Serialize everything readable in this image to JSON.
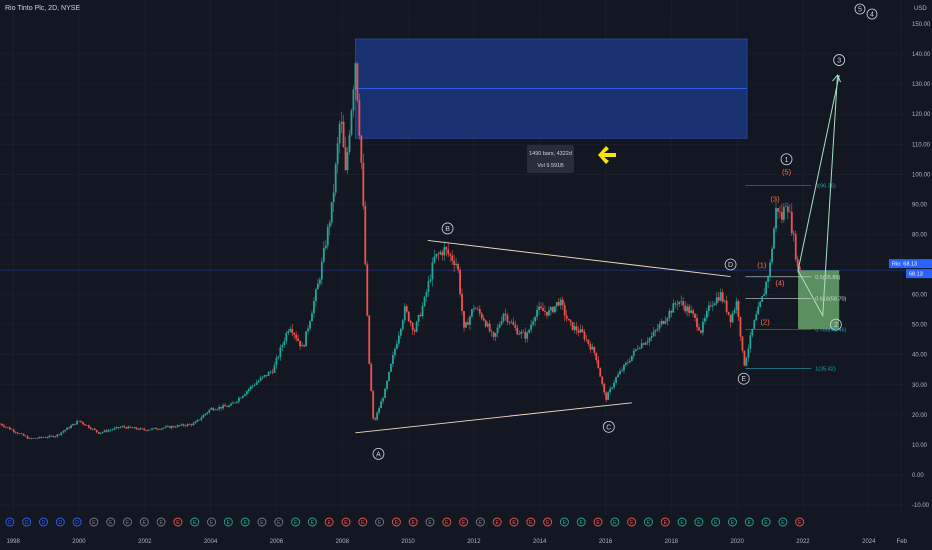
{
  "header": {
    "symbol_title": "Rio Tinto Plc, 2D, NYSE",
    "currency": "USD"
  },
  "top_wave_labels": [
    "5",
    "4"
  ],
  "chart_data": {
    "type": "candlestick",
    "title": "Rio Tinto Plc, 2D, NYSE",
    "ylim": [
      -10,
      150
    ],
    "y_ticks": [
      -10,
      0,
      10,
      20,
      30,
      40,
      50,
      60,
      70,
      80,
      90,
      100,
      110,
      120,
      130,
      140,
      150
    ],
    "y_tick_labels": [
      "-10.00",
      "0.00",
      "10.00",
      "20.00",
      "30.00",
      "40.00",
      "50.00",
      "60.00",
      "70.00",
      "80.00",
      "90.00",
      "100.00",
      "110.00",
      "120.00",
      "130.00",
      "140.00",
      "150.00"
    ],
    "xlim": [
      "1997-07",
      "2025-03"
    ],
    "x_tick_labels": [
      "1998",
      "2000",
      "2002",
      "2004",
      "2006",
      "2008",
      "2010",
      "2012",
      "2014",
      "2016",
      "2018",
      "2020",
      "2022",
      "2024",
      "Feb"
    ],
    "x_tick_dates": [
      1998,
      2000,
      2002,
      2004,
      2006,
      2008,
      2010,
      2012,
      2014,
      2016,
      2018,
      2020,
      2022,
      2024,
      2025
    ],
    "last_price": 68.13,
    "price_label_name": "Rio:",
    "price_labels": [
      "68.13",
      "68.13"
    ],
    "price_path": [
      [
        1997.6,
        17
      ],
      [
        1998.5,
        12
      ],
      [
        1999.3,
        13
      ],
      [
        2000.0,
        18
      ],
      [
        2000.6,
        14
      ],
      [
        2001.3,
        16
      ],
      [
        2002.0,
        15
      ],
      [
        2002.8,
        16
      ],
      [
        2003.5,
        17
      ],
      [
        2004.0,
        22
      ],
      [
        2004.6,
        23
      ],
      [
        2005.3,
        30
      ],
      [
        2005.9,
        35
      ],
      [
        2006.4,
        50
      ],
      [
        2006.8,
        42
      ],
      [
        2007.3,
        65
      ],
      [
        2007.7,
        90
      ],
      [
        2007.95,
        120
      ],
      [
        2008.1,
        100
      ],
      [
        2008.4,
        138
      ],
      [
        2008.6,
        100
      ],
      [
        2008.8,
        40
      ],
      [
        2008.95,
        17
      ],
      [
        2009.3,
        28
      ],
      [
        2009.6,
        42
      ],
      [
        2009.9,
        55
      ],
      [
        2010.2,
        48
      ],
      [
        2010.5,
        58
      ],
      [
        2010.8,
        72
      ],
      [
        2011.1,
        75
      ],
      [
        2011.5,
        70
      ],
      [
        2011.7,
        48
      ],
      [
        2012.0,
        56
      ],
      [
        2012.3,
        52
      ],
      [
        2012.6,
        45
      ],
      [
        2012.9,
        54
      ],
      [
        2013.3,
        48
      ],
      [
        2013.6,
        46
      ],
      [
        2013.9,
        55
      ],
      [
        2014.3,
        54
      ],
      [
        2014.6,
        58
      ],
      [
        2014.9,
        50
      ],
      [
        2015.3,
        47
      ],
      [
        2015.7,
        40
      ],
      [
        2016.0,
        25
      ],
      [
        2016.3,
        32
      ],
      [
        2016.7,
        38
      ],
      [
        2017.0,
        43
      ],
      [
        2017.4,
        46
      ],
      [
        2017.8,
        52
      ],
      [
        2018.2,
        58
      ],
      [
        2018.6,
        54
      ],
      [
        2018.9,
        48
      ],
      [
        2019.2,
        57
      ],
      [
        2019.5,
        60
      ],
      [
        2019.8,
        52
      ],
      [
        2020.0,
        58
      ],
      [
        2020.2,
        36
      ],
      [
        2020.5,
        50
      ],
      [
        2020.8,
        60
      ],
      [
        2021.0,
        70
      ],
      [
        2021.2,
        90
      ],
      [
        2021.35,
        85
      ],
      [
        2021.5,
        92
      ],
      [
        2021.7,
        80
      ],
      [
        2021.85,
        68
      ],
      [
        2021.95,
        68.13
      ]
    ],
    "zones": [
      {
        "name": "Measured range",
        "x": [
          2008.4,
          2020.3
        ],
        "y": [
          112,
          145
        ],
        "mid": 128.5
      },
      {
        "name": "Target zone",
        "x": [
          2021.85,
          2023.1
        ],
        "y": [
          48.46,
          68.13
        ]
      }
    ],
    "measure_labels": [
      "1490 bars, 4322d",
      "Vol 9.591B"
    ],
    "fib_levels": [
      {
        "label": "0(96.36)",
        "value": 96.36,
        "color": "#1fa3b5"
      },
      {
        "label": "0.5(65.89)",
        "value": 65.89,
        "color": "#d1d4dc"
      },
      {
        "label": "0.618(58.70)",
        "value": 58.7,
        "color": "#d1d4dc"
      },
      {
        "label": "0.786(48.46)",
        "value": 48.46,
        "color": "#1fa3b5"
      },
      {
        "label": "1(35.42)",
        "value": 35.42,
        "color": "#1fa3b5"
      }
    ],
    "trendlines": [
      {
        "name": "upper",
        "from": [
          2010.6,
          78
        ],
        "to": [
          2019.8,
          66
        ]
      },
      {
        "name": "lower",
        "from": [
          2008.4,
          14
        ],
        "to": [
          2016.8,
          24
        ]
      }
    ],
    "wave_labels": [
      {
        "text": "A",
        "x": 2009.1,
        "y": 7,
        "style": "circle"
      },
      {
        "text": "B",
        "x": 2011.2,
        "y": 82,
        "style": "circle"
      },
      {
        "text": "C",
        "x": 2016.1,
        "y": 16,
        "style": "circle"
      },
      {
        "text": "D",
        "x": 2019.8,
        "y": 70,
        "style": "circle"
      },
      {
        "text": "E",
        "x": 2020.2,
        "y": 32,
        "style": "circle"
      },
      {
        "text": "1",
        "x": 2021.5,
        "y": 105,
        "style": "circle"
      },
      {
        "text": "2",
        "x": 2023.0,
        "y": 50,
        "style": "circle"
      },
      {
        "text": "3",
        "x": 2023.1,
        "y": 138,
        "style": "circle"
      },
      {
        "text": "(1)",
        "x": 2020.75,
        "y": 69,
        "style": "orange"
      },
      {
        "text": "(2)",
        "x": 2020.85,
        "y": 50,
        "style": "orange"
      },
      {
        "text": "(3)",
        "x": 2021.15,
        "y": 91,
        "style": "orange"
      },
      {
        "text": "(4)",
        "x": 2021.3,
        "y": 63,
        "style": "orange"
      },
      {
        "text": "(5)",
        "x": 2021.5,
        "y": 100,
        "style": "orange"
      }
    ],
    "projection": [
      [
        2021.85,
        68
      ],
      [
        2022.6,
        53
      ],
      [
        2023.05,
        133
      ]
    ],
    "projection_alt": [
      [
        2021.85,
        68
      ],
      [
        2023.1,
        133
      ]
    ],
    "events": [
      "D",
      "D",
      "D",
      "D",
      "D",
      "E",
      "E",
      "E",
      "E",
      "E",
      "E",
      "E",
      "E",
      "E",
      "E",
      "E",
      "E",
      "E",
      "E",
      "E",
      "E",
      "E",
      "E",
      "E",
      "E",
      "E",
      "E",
      "E",
      "E",
      "E",
      "E",
      "E",
      "E",
      "E",
      "E",
      "E",
      "E",
      "E",
      "E",
      "E",
      "E",
      "E",
      "E",
      "E",
      "E",
      "E",
      "E",
      "E"
    ],
    "event_colors": [
      "#2962ff",
      "#2962ff",
      "#2962ff",
      "#2962ff",
      "#2962ff",
      "#787b86",
      "#787b86",
      "#787b86",
      "#787b86",
      "#787b86",
      "#ef5350",
      "#26a69a",
      "#787b86",
      "#26a69a",
      "#26a69a",
      "#787b86",
      "#787b86",
      "#26a69a",
      "#26a69a",
      "#ef5350",
      "#ef5350",
      "#ef5350",
      "#787b86",
      "#ef5350",
      "#ef5350",
      "#787b86",
      "#ef5350",
      "#ef5350",
      "#787b86",
      "#ef5350",
      "#ef5350",
      "#ef5350",
      "#ef5350",
      "#26a69a",
      "#26a69a",
      "#ef5350",
      "#26a69a",
      "#ef5350",
      "#26a69a",
      "#ef5350",
      "#26a69a",
      "#26a69a",
      "#26a69a",
      "#26a69a",
      "#26a69a",
      "#26a69a",
      "#26a69a",
      "#ef5350"
    ]
  }
}
